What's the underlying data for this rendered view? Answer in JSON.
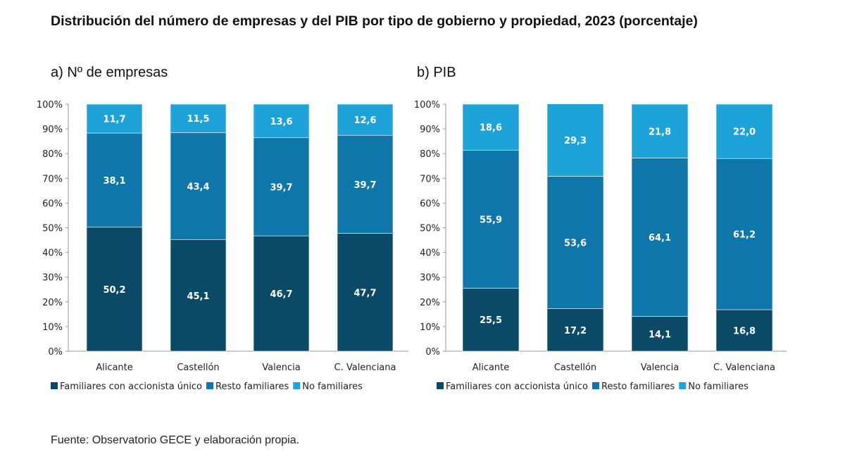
{
  "title": "Distribución del número de empresas y del PIB por tipo de gobierno y propiedad, 2023 (porcentaje)",
  "source": "Fuente: Observatorio GECE y elaboración propia.",
  "colors": {
    "Familiares con accionista único": "#0b4a66",
    "Resto familiares": "#0e76a8",
    "No familiares": "#1ea3d8"
  },
  "chart_data": [
    {
      "type": "bar",
      "stacked": true,
      "title": "a)  Nº de empresas",
      "categories": [
        "Alicante",
        "Castellón",
        "Valencia",
        "C. Valenciana"
      ],
      "yticks": [
        "0%",
        "10%",
        "20%",
        "30%",
        "40%",
        "50%",
        "60%",
        "70%",
        "80%",
        "90%",
        "100%"
      ],
      "ylim": [
        0,
        100
      ],
      "legend": "bottom",
      "grid": false,
      "series": [
        {
          "name": "Familiares con accionista único",
          "values": [
            50.2,
            45.1,
            46.7,
            47.7
          ],
          "labels": [
            "50,2",
            "45,1",
            "46,7",
            "47,7"
          ]
        },
        {
          "name": "Resto familiares",
          "values": [
            38.1,
            43.4,
            39.7,
            39.7
          ],
          "labels": [
            "38,1",
            "43,4",
            "39,7",
            "39,7"
          ]
        },
        {
          "name": "No familiares",
          "values": [
            11.7,
            11.5,
            13.6,
            12.6
          ],
          "labels": [
            "11,7",
            "11,5",
            "13,6",
            "12,6"
          ]
        }
      ]
    },
    {
      "type": "bar",
      "stacked": true,
      "title": "b)  PIB",
      "categories": [
        "Alicante",
        "Castellón",
        "Valencia",
        "C. Valenciana"
      ],
      "yticks": [
        "0%",
        "10%",
        "20%",
        "30%",
        "40%",
        "50%",
        "60%",
        "70%",
        "80%",
        "90%",
        "100%"
      ],
      "ylim": [
        0,
        100
      ],
      "legend": "bottom",
      "grid": false,
      "series": [
        {
          "name": "Familiares con accionista único",
          "values": [
            25.5,
            17.2,
            14.1,
            16.8
          ],
          "labels": [
            "25,5",
            "17,2",
            "14,1",
            "16,8"
          ]
        },
        {
          "name": "Resto familiares",
          "values": [
            55.9,
            53.6,
            64.1,
            61.2
          ],
          "labels": [
            "55,9",
            "53,6",
            "64,1",
            "61,2"
          ]
        },
        {
          "name": "No familiares",
          "values": [
            18.6,
            29.3,
            21.8,
            22.0
          ],
          "labels": [
            "18,6",
            "29,3",
            "21,8",
            "22,0"
          ]
        }
      ]
    }
  ]
}
